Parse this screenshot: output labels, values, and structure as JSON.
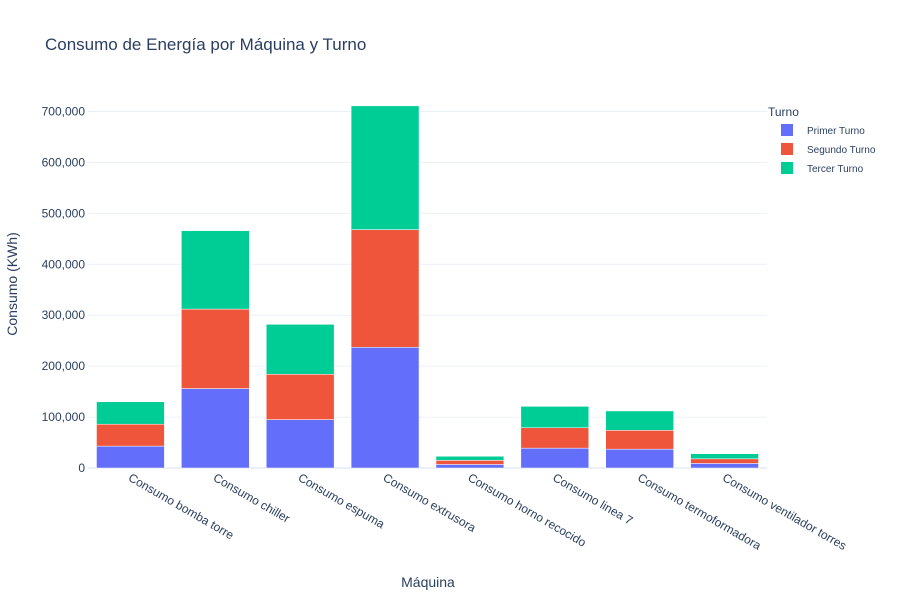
{
  "chart_data": {
    "type": "bar",
    "stacked": true,
    "title": "Consumo de Energía por Máquina y Turno",
    "xlabel": "Máquina",
    "ylabel": "Consumo (KWh)",
    "ylim": [
      0,
      750000
    ],
    "yticks": [
      0,
      100000,
      200000,
      300000,
      400000,
      500000,
      600000,
      700000
    ],
    "ytick_labels": [
      "0",
      "100,000",
      "200,000",
      "300,000",
      "400,000",
      "500,000",
      "600,000",
      "700,000"
    ],
    "grid": true,
    "legend_title": "Turno",
    "legend_position": "top-right",
    "categories": [
      "Consumo bomba torre",
      "Consumo chiller",
      "Consumo espuma",
      "Consumo extrusora",
      "Consumo horno recocido",
      "Consumo linea 7",
      "Consumo termoformadora",
      "Consumo ventilador torres"
    ],
    "series": [
      {
        "name": "Primer Turno",
        "color": "#636efa",
        "values": [
          43000,
          156000,
          95000,
          237000,
          7000,
          39000,
          37000,
          9000
        ]
      },
      {
        "name": "Segundo Turno",
        "color": "#ef553b",
        "values": [
          43000,
          156000,
          89000,
          231000,
          8000,
          40000,
          37000,
          9000
        ]
      },
      {
        "name": "Tercer Turno",
        "color": "#00cc96",
        "values": [
          44000,
          154000,
          98000,
          243000,
          8000,
          42000,
          38000,
          10000
        ]
      }
    ]
  }
}
